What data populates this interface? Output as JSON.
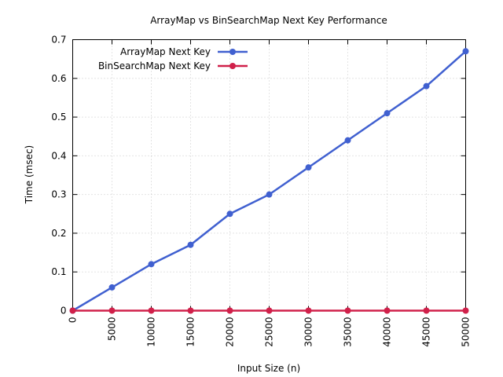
{
  "chart_data": {
    "type": "line",
    "title": "ArrayMap vs BinSearchMap Next Key Performance",
    "xlabel": "Input Size (n)",
    "ylabel": "Time (msec)",
    "x": [
      0,
      5000,
      10000,
      15000,
      20000,
      25000,
      30000,
      35000,
      40000,
      45000,
      50000
    ],
    "x_tick_labels": [
      "0",
      "5000",
      "10000",
      "15000",
      "20000",
      "25000",
      "30000",
      "35000",
      "40000",
      "45000",
      "50000"
    ],
    "y_tick_labels": [
      "0",
      "0.1",
      "0.2",
      "0.3",
      "0.4",
      "0.5",
      "0.6",
      "0.7"
    ],
    "xlim": [
      0,
      50000
    ],
    "ylim": [
      0,
      0.7
    ],
    "grid": true,
    "legend_position": "top-left",
    "series": [
      {
        "name": "ArrayMap Next Key",
        "color": "#4060d0",
        "values": [
          0,
          0.06,
          0.12,
          0.17,
          0.25,
          0.3,
          0.37,
          0.44,
          0.51,
          0.58,
          0.67
        ]
      },
      {
        "name": "BinSearchMap Next Key",
        "color": "#d0204a",
        "values": [
          0,
          0,
          0,
          0,
          0,
          0,
          0,
          0,
          0,
          0,
          0
        ]
      }
    ]
  }
}
